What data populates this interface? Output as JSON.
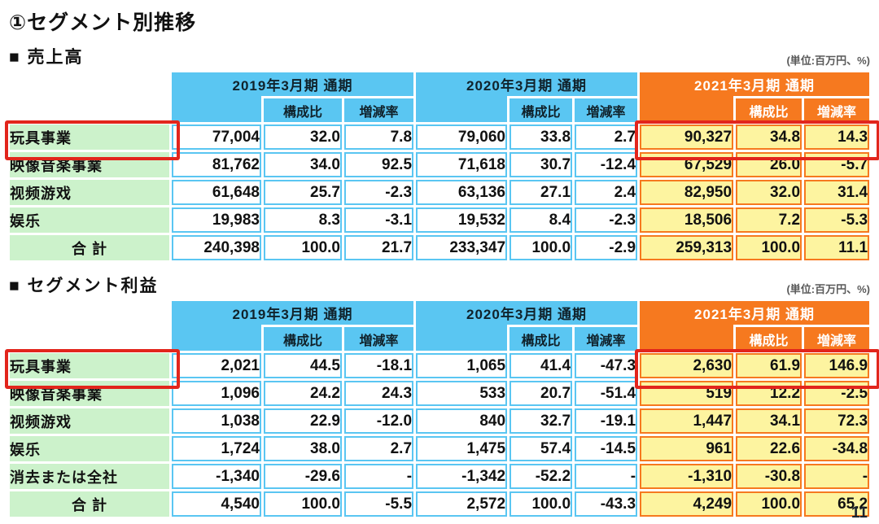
{
  "document": {
    "title": "①セグメント別推移",
    "unit_label": "(単位:百万円、%)",
    "page_number": "11"
  },
  "colors": {
    "header_blue": "#5AC6F2",
    "header_orange": "#F6791F",
    "cell_yellow": "#FDF4A0",
    "label_green": "#CCF2CB",
    "highlight_red": "#E2251C"
  },
  "periods": {
    "fy2019": "2019年3月期 通期",
    "fy2020": "2020年3月期 通期",
    "fy2021": "2021年3月期 通期"
  },
  "subheaders": {
    "composition": "構成比",
    "change": "増減率"
  },
  "tables": {
    "sales": {
      "section_title": "■ 売上高",
      "rows": [
        {
          "label": "玩具事業",
          "highlighted": true,
          "cells": [
            "77,004",
            "32.0",
            "7.8",
            "79,060",
            "33.8",
            "2.7",
            "90,327",
            "34.8",
            "14.3"
          ]
        },
        {
          "label": "映像音楽事業",
          "highlighted": false,
          "cells": [
            "81,762",
            "34.0",
            "92.5",
            "71,618",
            "30.7",
            "-12.4",
            "67,529",
            "26.0",
            "-5.7"
          ]
        },
        {
          "label": "视频游戏",
          "highlighted": false,
          "cells": [
            "61,648",
            "25.7",
            "-2.3",
            "63,136",
            "27.1",
            "2.4",
            "82,950",
            "32.0",
            "31.4"
          ]
        },
        {
          "label": "娱乐",
          "highlighted": false,
          "cells": [
            "19,983",
            "8.3",
            "-3.1",
            "19,532",
            "8.4",
            "-2.3",
            "18,506",
            "7.2",
            "-5.3"
          ]
        },
        {
          "label": "合 計",
          "highlighted": false,
          "cells": [
            "240,398",
            "100.0",
            "21.7",
            "233,347",
            "100.0",
            "-2.9",
            "259,313",
            "100.0",
            "11.1"
          ]
        }
      ]
    },
    "profit": {
      "section_title": "■ セグメント利益",
      "rows": [
        {
          "label": "玩具事業",
          "highlighted": true,
          "cells": [
            "2,021",
            "44.5",
            "-18.1",
            "1,065",
            "41.4",
            "-47.3",
            "2,630",
            "61.9",
            "146.9"
          ]
        },
        {
          "label": "映像音楽事業",
          "highlighted": false,
          "cells": [
            "1,096",
            "24.2",
            "24.3",
            "533",
            "20.7",
            "-51.4",
            "519",
            "12.2",
            "-2.5"
          ]
        },
        {
          "label": "视频游戏",
          "highlighted": false,
          "cells": [
            "1,038",
            "22.9",
            "-12.0",
            "840",
            "32.7",
            "-19.1",
            "1,447",
            "34.1",
            "72.3"
          ]
        },
        {
          "label": "娱乐",
          "highlighted": false,
          "cells": [
            "1,724",
            "38.0",
            "2.7",
            "1,475",
            "57.4",
            "-14.5",
            "961",
            "22.6",
            "-34.8"
          ]
        },
        {
          "label": "消去または全社",
          "highlighted": false,
          "cells": [
            "-1,340",
            "-29.6",
            "-",
            "-1,342",
            "-52.2",
            "-",
            "-1,310",
            "-30.8",
            "-"
          ]
        },
        {
          "label": "合 計",
          "highlighted": false,
          "cells": [
            "4,540",
            "100.0",
            "-5.5",
            "2,572",
            "100.0",
            "-43.3",
            "4,249",
            "100.0",
            "65.2"
          ]
        }
      ]
    }
  }
}
